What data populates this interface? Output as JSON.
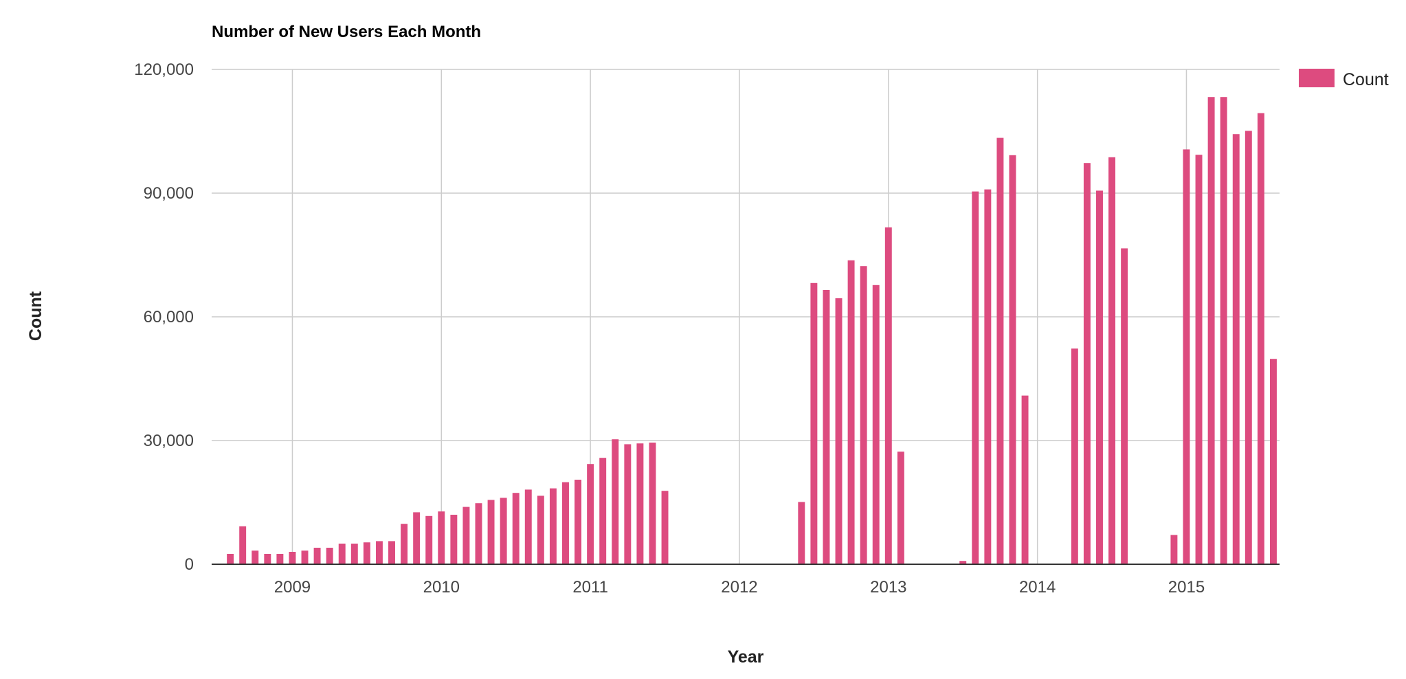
{
  "chart_data": {
    "type": "bar",
    "title": "Number of New Users Each Month",
    "xlabel": "Year",
    "ylabel": "Count",
    "ylim": [
      0,
      120000
    ],
    "xlim": [
      "2008-07",
      "2015-08"
    ],
    "y_ticks": [
      "0",
      "30,000",
      "60,000",
      "90,000",
      "120,000"
    ],
    "y_tick_values": [
      0,
      30000,
      60000,
      90000,
      120000
    ],
    "x_ticks": [
      "2009",
      "2010",
      "2011",
      "2012",
      "2013",
      "2014",
      "2015"
    ],
    "x_tick_dates": [
      "2009-01",
      "2010-01",
      "2011-01",
      "2012-01",
      "2013-01",
      "2014-01",
      "2015-01"
    ],
    "legend": {
      "position": "top-right",
      "entries": [
        "Count"
      ]
    },
    "grid": true,
    "colors": {
      "bar": "#dd4b7f"
    },
    "series": [
      {
        "name": "Count",
        "data": [
          [
            "2008-08",
            2500
          ],
          [
            "2008-09",
            9200
          ],
          [
            "2008-10",
            3300
          ],
          [
            "2008-11",
            2500
          ],
          [
            "2008-12",
            2500
          ],
          [
            "2009-01",
            3000
          ],
          [
            "2009-02",
            3300
          ],
          [
            "2009-03",
            4000
          ],
          [
            "2009-04",
            4000
          ],
          [
            "2009-05",
            5000
          ],
          [
            "2009-06",
            5000
          ],
          [
            "2009-07",
            5300
          ],
          [
            "2009-08",
            5600
          ],
          [
            "2009-09",
            5600
          ],
          [
            "2009-10",
            9800
          ],
          [
            "2009-11",
            12600
          ],
          [
            "2009-12",
            11700
          ],
          [
            "2010-01",
            12800
          ],
          [
            "2010-02",
            12000
          ],
          [
            "2010-03",
            13900
          ],
          [
            "2010-04",
            14800
          ],
          [
            "2010-05",
            15600
          ],
          [
            "2010-06",
            16100
          ],
          [
            "2010-07",
            17300
          ],
          [
            "2010-08",
            18100
          ],
          [
            "2010-09",
            16600
          ],
          [
            "2010-10",
            18400
          ],
          [
            "2010-11",
            19900
          ],
          [
            "2010-12",
            20500
          ],
          [
            "2011-01",
            24300
          ],
          [
            "2011-02",
            25800
          ],
          [
            "2011-03",
            30300
          ],
          [
            "2011-04",
            29100
          ],
          [
            "2011-05",
            29300
          ],
          [
            "2011-06",
            29500
          ],
          [
            "2011-07",
            17800
          ],
          [
            "2012-06",
            15100
          ],
          [
            "2012-07",
            68200
          ],
          [
            "2012-08",
            66500
          ],
          [
            "2012-09",
            64500
          ],
          [
            "2012-10",
            73700
          ],
          [
            "2012-11",
            72300
          ],
          [
            "2012-12",
            67700
          ],
          [
            "2013-01",
            81700
          ],
          [
            "2013-02",
            27300
          ],
          [
            "2013-07",
            800
          ],
          [
            "2013-08",
            90400
          ],
          [
            "2013-09",
            90900
          ],
          [
            "2013-10",
            103400
          ],
          [
            "2013-11",
            99200
          ],
          [
            "2013-12",
            40900
          ],
          [
            "2014-04",
            52300
          ],
          [
            "2014-05",
            97300
          ],
          [
            "2014-06",
            90600
          ],
          [
            "2014-07",
            98700
          ],
          [
            "2014-08",
            76600
          ],
          [
            "2014-12",
            7100
          ],
          [
            "2015-01",
            100600
          ],
          [
            "2015-02",
            99300
          ],
          [
            "2015-03",
            113300
          ],
          [
            "2015-04",
            113300
          ],
          [
            "2015-05",
            104300
          ],
          [
            "2015-06",
            105100
          ],
          [
            "2015-07",
            109400
          ],
          [
            "2015-08",
            49800
          ]
        ]
      }
    ]
  }
}
